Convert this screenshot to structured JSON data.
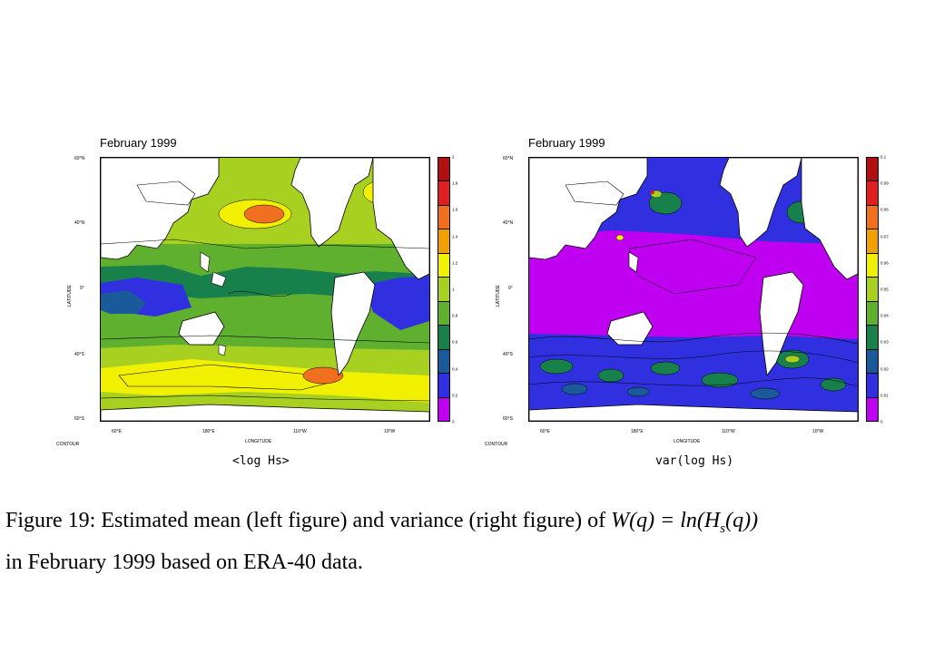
{
  "figure": {
    "left": {
      "title": "February 1999",
      "subcaption": "<log Hs>",
      "y_ticks": [
        "60°N",
        "40°N",
        "0°",
        "40°S",
        "60°S"
      ],
      "x_ticks": [
        "60°E",
        "180°E",
        "110°W",
        "10°W"
      ],
      "ylabel": "LATITUDE",
      "xlabel": "LONGITUDE",
      "contour_note": "CONTOUR",
      "colorbar_ticks": [
        "2",
        "1.8",
        "1.6",
        "1.4",
        "1.2",
        "1",
        "0.8",
        "0.6",
        "0.4",
        "0.2",
        "0"
      ],
      "colorbar_colors": [
        "#b01010",
        "#e02020",
        "#f07020",
        "#f0a000",
        "#f0f000",
        "#a8d020",
        "#60b030",
        "#18804a",
        "#1a5a9a",
        "#3030e0",
        "#c000f0"
      ]
    },
    "right": {
      "title": "February 1999",
      "subcaption": "var(log Hs)",
      "y_ticks": [
        "60°N",
        "40°N",
        "0°",
        "40°S",
        "60°S"
      ],
      "x_ticks": [
        "60°E",
        "180°E",
        "110°W",
        "10°W"
      ],
      "ylabel": "LATITUDE",
      "xlabel": "LONGITUDE",
      "contour_note": "CONTOUR",
      "colorbar_ticks": [
        "0.1",
        "0.09",
        "0.08",
        "0.07",
        "0.06",
        "0.05",
        "0.04",
        "0.03",
        "0.02",
        "0.01",
        "0"
      ],
      "colorbar_colors": [
        "#b01010",
        "#e02020",
        "#f07020",
        "#f0a000",
        "#f0f000",
        "#a8d020",
        "#60b030",
        "#18804a",
        "#1a5a9a",
        "#3030e0",
        "#c000f0"
      ]
    }
  },
  "caption": {
    "prefix": "Figure 19: Estimated mean (left figure) and variance (right figure) of ",
    "formula": "W(q) = ln(H",
    "subscript": "s",
    "formula_end": "(q))",
    "line2": "in February 1999 based on ERA-40 data."
  }
}
